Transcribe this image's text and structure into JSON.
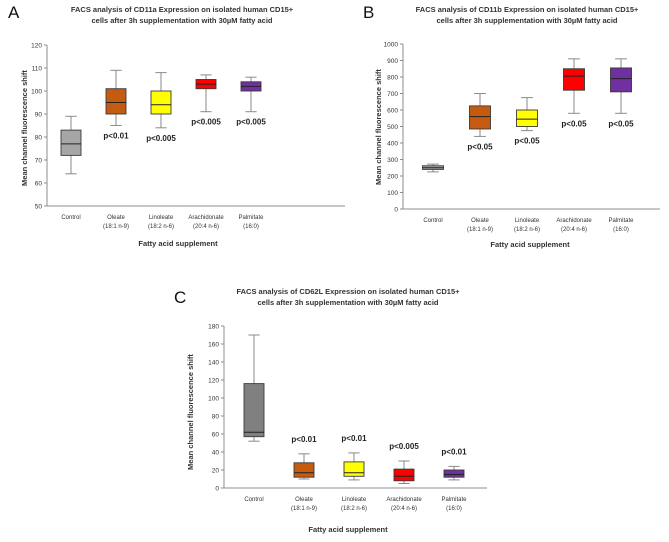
{
  "chart_data": [
    {
      "type": "box",
      "panel": "A",
      "title_lines": [
        "FACS analysis of CD11a Expression on isolated human CD15+",
        "cells after 3h supplementation with 30µM fatty acid"
      ],
      "xlabel": "Fatty acid supplement",
      "ylabel": "Mean channel fluorescence shift",
      "ylim": [
        50,
        120
      ],
      "yticks": [
        50,
        60,
        70,
        80,
        90,
        100,
        110,
        120
      ],
      "categories": [
        {
          "line1": "Control",
          "line2": ""
        },
        {
          "line1": "Oleate",
          "line2": "(18:1 n-9)"
        },
        {
          "line1": "Linoleate",
          "line2": "(18:2 n-6)"
        },
        {
          "line1": "Arachidonate",
          "line2": "(20:4 n-6)"
        },
        {
          "line1": "Palmitate",
          "line2": "(16:0)"
        }
      ],
      "boxes": [
        {
          "min": 64,
          "q1": 72,
          "median": 77,
          "q3": 83,
          "max": 89,
          "color": "#a6a6a6",
          "pvalue": ""
        },
        {
          "min": 85,
          "q1": 90,
          "median": 95,
          "q3": 101,
          "max": 109,
          "color": "#c55a11",
          "pvalue": "p<0.01"
        },
        {
          "min": 84,
          "q1": 90,
          "median": 94,
          "q3": 100,
          "max": 108,
          "color": "#ffff00",
          "pvalue": "p<0.005"
        },
        {
          "min": 91,
          "q1": 101,
          "median": 103,
          "q3": 105,
          "max": 107,
          "color": "#ff0000",
          "pvalue": "p<0.005"
        },
        {
          "min": 91,
          "q1": 100,
          "median": 102,
          "q3": 104,
          "max": 106,
          "color": "#7030a0",
          "pvalue": "p<0.005"
        }
      ]
    },
    {
      "type": "box",
      "panel": "B",
      "title_lines": [
        "FACS analysis of CD11b Expression on isolated human CD15+",
        "cells after 3h supplementation with 30µM fatty acid"
      ],
      "xlabel": "Fatty acid supplement",
      "ylabel": "Mean channel fluorescence shift",
      "ylim": [
        0,
        1000
      ],
      "yticks": [
        0,
        100,
        200,
        300,
        400,
        500,
        600,
        700,
        800,
        900,
        1000
      ],
      "categories": [
        {
          "line1": "Control",
          "line2": ""
        },
        {
          "line1": "Oleate",
          "line2": "(18:1 n-9)"
        },
        {
          "line1": "Linoleate",
          "line2": "(18:2 n-6)"
        },
        {
          "line1": "Arachidonate",
          "line2": "(20:4 n-6)"
        },
        {
          "line1": "Palmitate",
          "line2": "(16:0)"
        }
      ],
      "boxes": [
        {
          "min": 225,
          "q1": 240,
          "median": 250,
          "q3": 262,
          "max": 272,
          "color": "#a6a6a6",
          "pvalue": ""
        },
        {
          "min": 440,
          "q1": 485,
          "median": 560,
          "q3": 625,
          "max": 700,
          "color": "#c55a11",
          "pvalue": "p<0.05"
        },
        {
          "min": 475,
          "q1": 500,
          "median": 545,
          "q3": 600,
          "max": 675,
          "color": "#ffff00",
          "pvalue": "p<0.05"
        },
        {
          "min": 580,
          "q1": 720,
          "median": 805,
          "q3": 850,
          "max": 910,
          "color": "#ff0000",
          "pvalue": "p<0.05"
        },
        {
          "min": 580,
          "q1": 710,
          "median": 790,
          "q3": 855,
          "max": 910,
          "color": "#7030a0",
          "pvalue": "p<0.05"
        }
      ]
    },
    {
      "type": "box",
      "panel": "C",
      "title_lines": [
        "FACS analysis of CD62L Expression on isolated human CD15+",
        "cells after 3h supplementation with 30µM fatty acid"
      ],
      "xlabel": "Fatty acid supplement",
      "ylabel": "Mean channel fluorescence shift",
      "ylim": [
        0,
        180
      ],
      "yticks": [
        0,
        20,
        40,
        60,
        80,
        100,
        120,
        140,
        160,
        180
      ],
      "categories": [
        {
          "line1": "Control",
          "line2": ""
        },
        {
          "line1": "Oleate",
          "line2": "(18:1 n-9)"
        },
        {
          "line1": "Linoleate",
          "line2": "(18:2 n-6)"
        },
        {
          "line1": "Arachidonate",
          "line2": "(20:4 n-6)"
        },
        {
          "line1": "Palmitate",
          "line2": "(16:0)"
        }
      ],
      "boxes": [
        {
          "min": 52,
          "q1": 57,
          "median": 62,
          "q3": 116,
          "max": 170,
          "color": "#808080",
          "pvalue": ""
        },
        {
          "min": 10,
          "q1": 12,
          "median": 17,
          "q3": 28,
          "max": 38,
          "color": "#c55a11",
          "pvalue": "p<0.01"
        },
        {
          "min": 9,
          "q1": 13,
          "median": 17,
          "q3": 29,
          "max": 39,
          "color": "#ffff00",
          "pvalue": "p<0.01"
        },
        {
          "min": 5,
          "q1": 8,
          "median": 13,
          "q3": 21,
          "max": 30,
          "color": "#ff0000",
          "pvalue": "p<0.005"
        },
        {
          "min": 9,
          "q1": 12,
          "median": 15,
          "q3": 20,
          "max": 24,
          "color": "#7030a0",
          "pvalue": "p<0.01"
        }
      ]
    }
  ]
}
